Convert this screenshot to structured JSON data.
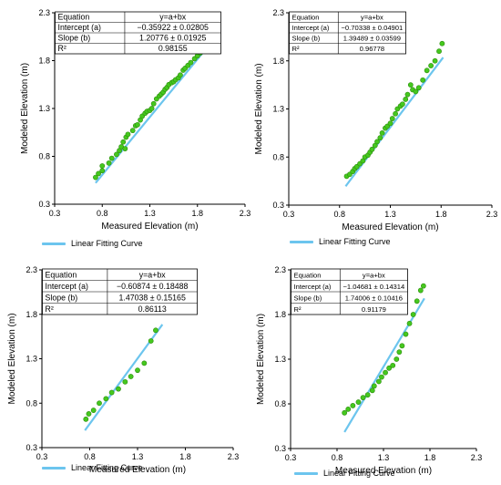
{
  "colors": {
    "fit_line": "#6cc5ee",
    "point": "#45c81e",
    "point_edge": "#2d8c0f",
    "axis": "#000000"
  },
  "chart_data": [
    {
      "type": "scatter",
      "xlabel": "Measured Elevation (m)",
      "ylabel": "Modeled Elevation (m)",
      "xlim": [
        0.3,
        2.3
      ],
      "ylim": [
        0.3,
        2.3
      ],
      "xticks": [
        "0.3",
        "0.8",
        "1.3",
        "1.8",
        "2.3"
      ],
      "yticks": [
        "0.3",
        "0.8",
        "1.3",
        "1.8",
        "2.3"
      ],
      "stats_table": {
        "rows": [
          [
            "Equation",
            "y=a+bx"
          ],
          [
            "Intercept (a)",
            "−0.35922 ± 0.02805"
          ],
          [
            "Slope (b)",
            "1.20776 ± 0.01925"
          ],
          [
            "R²",
            "0.98155"
          ]
        ]
      },
      "fit": {
        "intercept": -0.35922,
        "slope": 1.20776,
        "x_range": [
          0.73,
          1.97
        ]
      },
      "legend": "Linear Fitting Curve",
      "series": [
        {
          "x": [
            0.73,
            0.76,
            0.8,
            0.8,
            0.87,
            0.9,
            0.95,
            0.98,
            1.0,
            1.02,
            1.04,
            1.05,
            1.07,
            1.12,
            1.15,
            1.17,
            1.2,
            1.22,
            1.25,
            1.27,
            1.3,
            1.32,
            1.34,
            1.37,
            1.4,
            1.42,
            1.44,
            1.46,
            1.48,
            1.5,
            1.53,
            1.55,
            1.57,
            1.6,
            1.62,
            1.65,
            1.67,
            1.7,
            1.73,
            1.77,
            1.8,
            1.83,
            1.86,
            1.88,
            1.9,
            1.92,
            1.94,
            1.97
          ],
          "y": [
            0.58,
            0.62,
            0.7,
            0.65,
            0.73,
            0.78,
            0.82,
            0.86,
            0.9,
            0.95,
            0.88,
            1.0,
            1.03,
            1.07,
            1.12,
            1.13,
            1.18,
            1.22,
            1.25,
            1.27,
            1.28,
            1.3,
            1.35,
            1.4,
            1.43,
            1.45,
            1.47,
            1.5,
            1.52,
            1.55,
            1.57,
            1.58,
            1.6,
            1.62,
            1.65,
            1.7,
            1.72,
            1.75,
            1.78,
            1.82,
            1.85,
            1.88,
            1.9,
            1.93,
            2.0,
            2.05,
            2.08,
            2.1
          ]
        }
      ]
    },
    {
      "type": "scatter",
      "xlabel": "Measured Elevation (m)",
      "ylabel": "Modeled Elevation (m)",
      "xlim": [
        0.3,
        2.3
      ],
      "ylim": [
        0.3,
        2.3
      ],
      "xticks": [
        "0.3",
        "0.8",
        "1.3",
        "1.8",
        "2.3"
      ],
      "yticks": [
        "0.3",
        "0.8",
        "1.3",
        "1.8",
        "2.3"
      ],
      "stats_table": {
        "rows": [
          [
            "Equation",
            "y=a+bx"
          ],
          [
            "Intercept (a)",
            "−0.70338 ± 0.04901"
          ],
          [
            "Slope (b)",
            "1.39489 ± 0.03599"
          ],
          [
            "R²",
            "0.96778"
          ]
        ]
      },
      "fit": {
        "intercept": -0.70338,
        "slope": 1.39489,
        "x_range": [
          0.86,
          1.82
        ]
      },
      "legend": "Linear Fitting Curve",
      "series": [
        {
          "x": [
            0.87,
            0.9,
            0.93,
            0.95,
            0.97,
            1.0,
            1.03,
            1.05,
            1.08,
            1.1,
            1.12,
            1.15,
            1.17,
            1.2,
            1.22,
            1.25,
            1.27,
            1.3,
            1.32,
            1.35,
            1.37,
            1.4,
            1.42,
            1.45,
            1.47,
            1.5,
            1.52,
            1.55,
            1.58,
            1.62,
            1.66,
            1.7,
            1.74,
            1.78,
            1.81
          ],
          "y": [
            0.6,
            0.62,
            0.65,
            0.68,
            0.7,
            0.73,
            0.76,
            0.8,
            0.82,
            0.85,
            0.88,
            0.92,
            0.96,
            1.0,
            1.05,
            1.1,
            1.12,
            1.15,
            1.2,
            1.25,
            1.3,
            1.33,
            1.35,
            1.4,
            1.45,
            1.55,
            1.5,
            1.48,
            1.52,
            1.6,
            1.7,
            1.75,
            1.8,
            1.9,
            1.98
          ]
        }
      ]
    },
    {
      "type": "scatter",
      "xlabel": "Measured Elevation (m)",
      "ylabel": "Modeled Elevation (m)",
      "xlim": [
        0.3,
        2.3
      ],
      "ylim": [
        0.3,
        2.3
      ],
      "xticks": [
        "0.3",
        "0.8",
        "1.3",
        "1.8",
        "2.3"
      ],
      "yticks": [
        "0.3",
        "0.8",
        "1.3",
        "1.8",
        "2.3"
      ],
      "stats_table": {
        "rows": [
          [
            "Equation",
            "y=a+bx"
          ],
          [
            "Intercept (a)",
            "−0.60874 ± 0.18488"
          ],
          [
            "Slope (b)",
            "1.47038 ± 0.15165"
          ],
          [
            "R²",
            "0.86113"
          ]
        ]
      },
      "fit": {
        "intercept": -0.60874,
        "slope": 1.47038,
        "x_range": [
          0.75,
          1.56
        ]
      },
      "legend": "Linear Fitting Curve",
      "series": [
        {
          "x": [
            0.76,
            0.79,
            0.84,
            0.9,
            0.97,
            1.03,
            1.1,
            1.17,
            1.23,
            1.3,
            1.37,
            1.44,
            1.49
          ],
          "y": [
            0.62,
            0.68,
            0.72,
            0.8,
            0.85,
            0.92,
            0.96,
            1.04,
            1.1,
            1.17,
            1.25,
            1.5,
            1.62
          ]
        }
      ]
    },
    {
      "type": "scatter",
      "xlabel": "Measured Elevation (m)",
      "ylabel": "Modeled Elevation (m)",
      "xlim": [
        0.3,
        2.3
      ],
      "ylim": [
        0.3,
        2.3
      ],
      "xticks": [
        "0.3",
        "0.8",
        "1.3",
        "1.8",
        "2.3"
      ],
      "yticks": [
        "0.3",
        "0.8",
        "1.3",
        "1.8",
        "2.3"
      ],
      "stats_table": {
        "rows": [
          [
            "Equation",
            "y=a+bx"
          ],
          [
            "Intercept (a)",
            "−1.04681 ± 0.14314"
          ],
          [
            "Slope (b)",
            "1.74006 ± 0.10416"
          ],
          [
            "R²",
            "0.91179"
          ]
        ]
      },
      "fit": {
        "intercept": -1.04681,
        "slope": 1.74006,
        "x_range": [
          0.88,
          1.74
        ]
      },
      "legend": "Linear Fitting Curve",
      "series": [
        {
          "x": [
            0.88,
            0.92,
            0.97,
            1.03,
            1.08,
            1.13,
            1.18,
            1.2,
            1.25,
            1.28,
            1.32,
            1.36,
            1.4,
            1.44,
            1.47,
            1.5,
            1.54,
            1.58,
            1.62,
            1.66,
            1.7,
            1.73
          ],
          "y": [
            0.7,
            0.74,
            0.78,
            0.82,
            0.87,
            0.9,
            0.95,
            1.0,
            1.05,
            1.1,
            1.15,
            1.2,
            1.23,
            1.3,
            1.38,
            1.45,
            1.58,
            1.7,
            1.8,
            1.95,
            2.07,
            2.12
          ]
        }
      ]
    }
  ]
}
